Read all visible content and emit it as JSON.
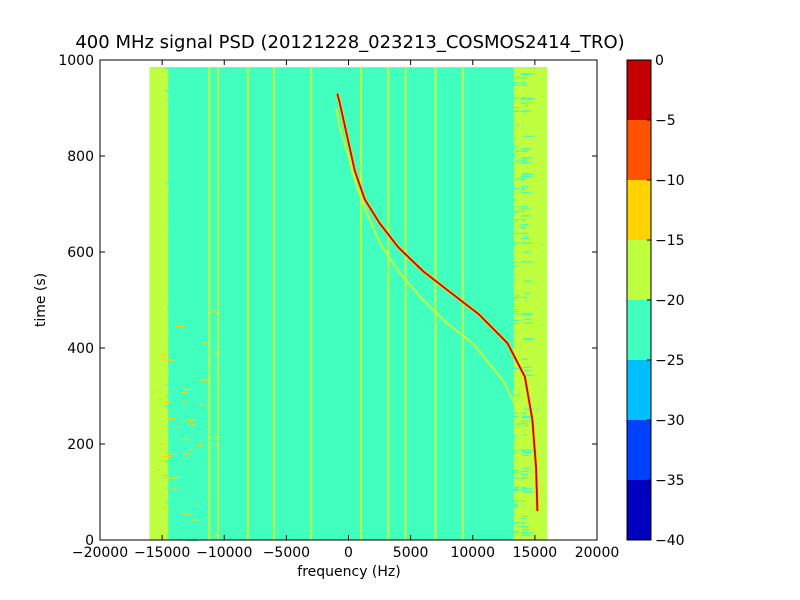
{
  "chart_data": {
    "type": "heatmap",
    "title": "400 MHz signal PSD (20121228_023213_COSMOS2414_TRO)",
    "xlabel": "frequency (Hz)",
    "ylabel": "time (s)",
    "xlim": [
      -20000,
      20000
    ],
    "ylim": [
      0,
      1000
    ],
    "x_ticks": [
      -20000,
      -15000,
      -10000,
      -5000,
      0,
      5000,
      10000,
      15000,
      20000
    ],
    "x_tick_labels": [
      "−20000",
      "−15000",
      "−10000",
      "−5000",
      "0",
      "5000",
      "10000",
      "15000",
      "20000"
    ],
    "y_ticks": [
      0,
      200,
      400,
      600,
      800,
      1000
    ],
    "y_tick_labels": [
      "0",
      "200",
      "400",
      "600",
      "800",
      "1000"
    ],
    "data_extent": {
      "freq": [
        -16000,
        16000
      ],
      "time": [
        0,
        985
      ]
    },
    "background_level": -22.5,
    "edge_band_levels": {
      "left": -17.5,
      "right": -17.5
    },
    "spur_lines_hz": [
      -11200,
      -10500,
      -8100,
      -6000,
      -3000,
      1000,
      3200,
      4600,
      7000,
      9200,
      13800,
      15000
    ],
    "signal_trace": {
      "level": -2.5,
      "points": [
        [
          15200,
          60
        ],
        [
          15100,
          150
        ],
        [
          14800,
          250
        ],
        [
          14200,
          340
        ],
        [
          12800,
          410
        ],
        [
          10500,
          470
        ],
        [
          8000,
          520
        ],
        [
          6000,
          560
        ],
        [
          4000,
          610
        ],
        [
          2500,
          660
        ],
        [
          1300,
          710
        ],
        [
          500,
          770
        ],
        [
          -100,
          840
        ],
        [
          -700,
          910
        ],
        [
          -900,
          930
        ]
      ]
    },
    "signal_trace_secondary": {
      "level": -17.5,
      "points": [
        [
          14000,
          250
        ],
        [
          12500,
          330
        ],
        [
          10000,
          410
        ],
        [
          8000,
          450
        ],
        [
          6000,
          500
        ],
        [
          4000,
          560
        ],
        [
          2500,
          620
        ],
        [
          1500,
          680
        ],
        [
          600,
          740
        ],
        [
          0,
          800
        ],
        [
          -700,
          860
        ],
        [
          -1000,
          900
        ]
      ]
    },
    "colorbar": {
      "levels": [
        -40,
        -35,
        -30,
        -25,
        -20,
        -15,
        -10,
        -5,
        0
      ],
      "tick_labels": [
        "−40",
        "−35",
        "−30",
        "−25",
        "−20",
        "−15",
        "−10",
        "−5",
        "0"
      ],
      "colors": [
        "#0000bf",
        "#0040ff",
        "#00bfff",
        "#40ffbf",
        "#bfff40",
        "#ffd200",
        "#ff5300",
        "#c40000"
      ]
    },
    "grid": false,
    "legend": "none"
  }
}
